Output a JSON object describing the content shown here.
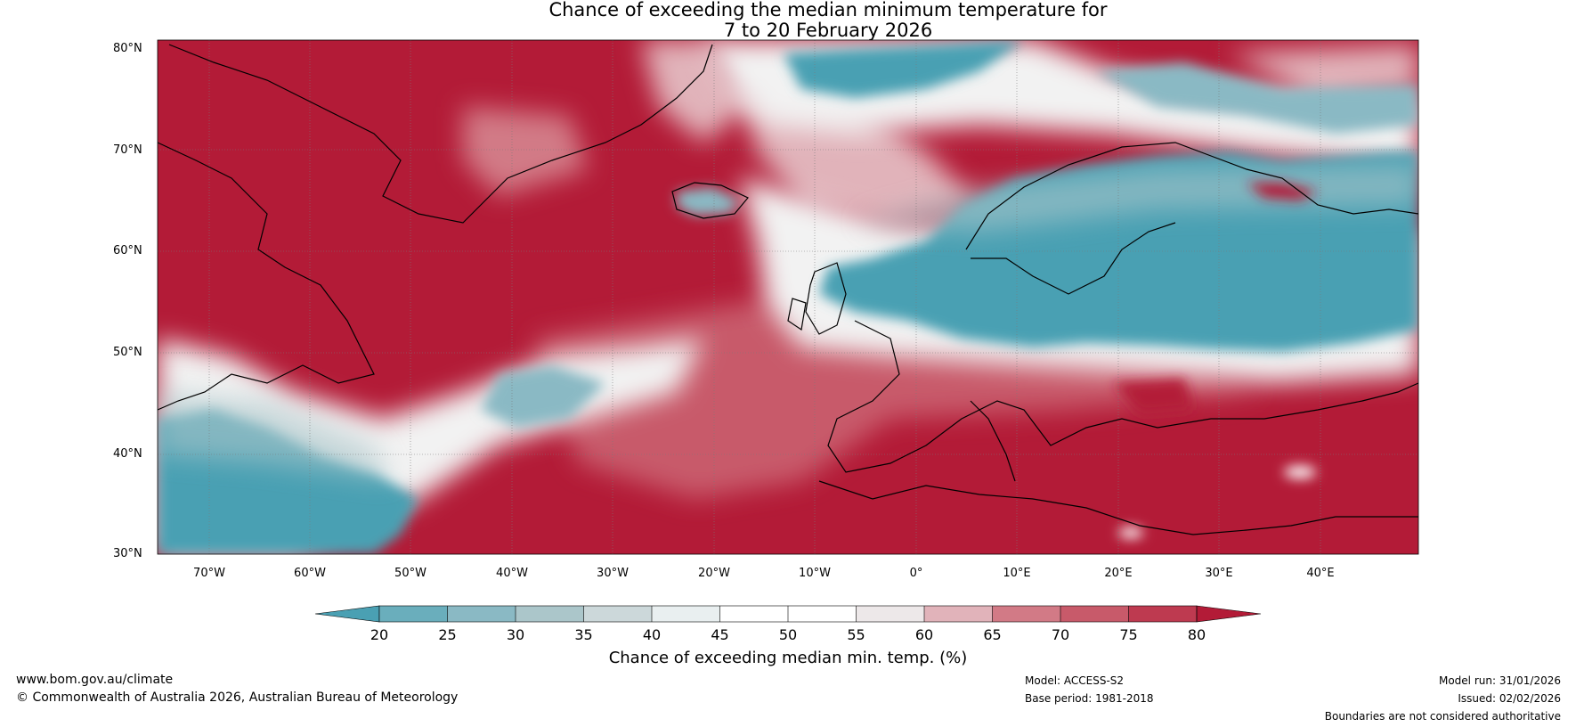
{
  "title": {
    "line1": "Chance of exceeding the median minimum temperature for",
    "line2": "7 to 20 February 2026"
  },
  "axes": {
    "lat_labels": [
      "80°N",
      "70°N",
      "60°N",
      "50°N",
      "40°N",
      "30°N"
    ],
    "lon_labels": [
      "70°W",
      "60°W",
      "50°W",
      "40°W",
      "30°W",
      "20°W",
      "10°W",
      "0°",
      "10°E",
      "20°E",
      "30°E",
      "40°E"
    ]
  },
  "colorbar": {
    "ticks": [
      "20",
      "25",
      "30",
      "35",
      "40",
      "45",
      "50",
      "55",
      "60",
      "65",
      "70",
      "75",
      "80"
    ],
    "label": "Chance of exceeding median min. temp. (%)",
    "colors": [
      "#4aa0b3",
      "#6aaebc",
      "#8ab9c4",
      "#abc6ca",
      "#ccd8da",
      "#e9eff0",
      "#ffffff",
      "#ffffff",
      "#ede8e9",
      "#e1b3ba",
      "#d27a86",
      "#c85a6a",
      "#be3a50",
      "#b31b37"
    ]
  },
  "footer": {
    "site": "www.bom.gov.au/climate",
    "copyright": "© Commonwealth of Australia 2026, Australian Bureau of Meteorology",
    "model": "Model: ACCESS-S2",
    "base_period": "Base period: 1981-2018",
    "model_run": "Model run: 31/01/2026",
    "issued": "Issued: 02/02/2026",
    "disclaimer": "Boundaries are not considered authoritative"
  }
}
